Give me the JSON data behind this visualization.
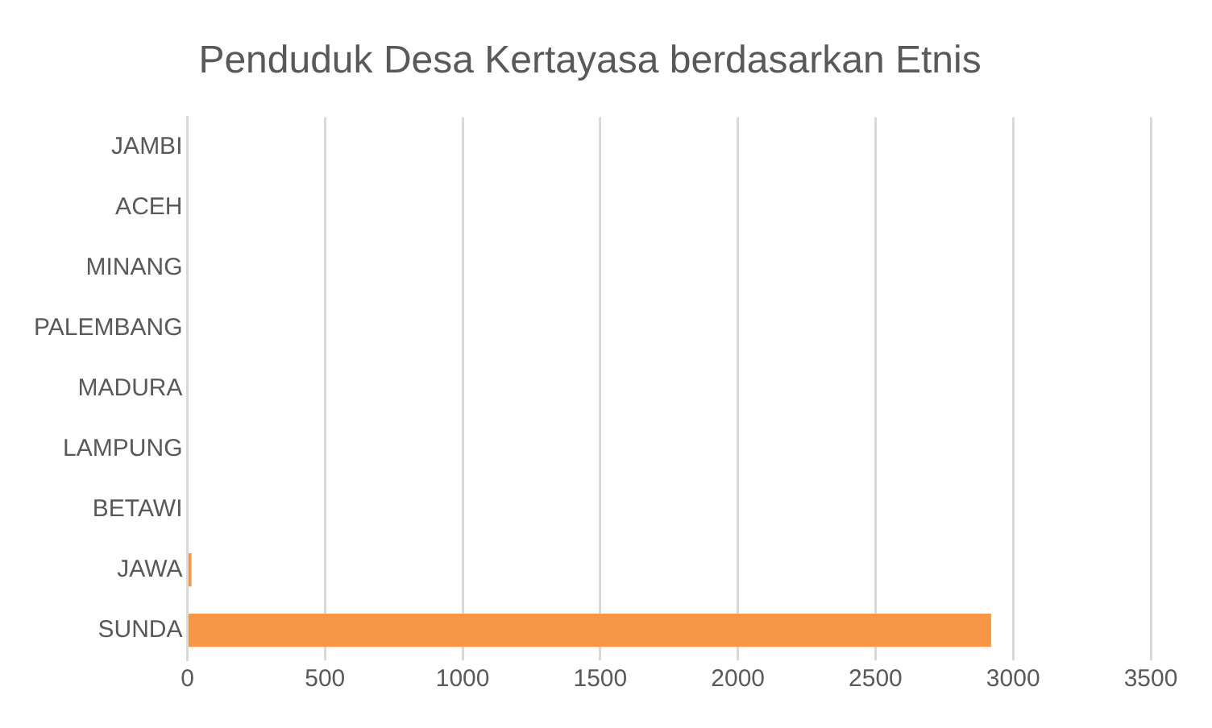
{
  "chart_data": {
    "type": "bar",
    "orientation": "horizontal",
    "title": "Penduduk Desa Kertayasa berdasarkan Etnis",
    "categories": [
      "JAMBI",
      "ACEH",
      "MINANG",
      "PALEMBANG",
      "MADURA",
      "LAMPUNG",
      "BETAWI",
      "JAWA",
      "SUNDA"
    ],
    "values": [
      0,
      0,
      0,
      0,
      0,
      0,
      0,
      15,
      2920
    ],
    "color": "#f79646",
    "xlim": [
      0,
      3500
    ],
    "xticks": [
      0,
      500,
      1000,
      1500,
      2000,
      2500,
      3000,
      3500
    ],
    "grid": "x",
    "legend": false
  }
}
